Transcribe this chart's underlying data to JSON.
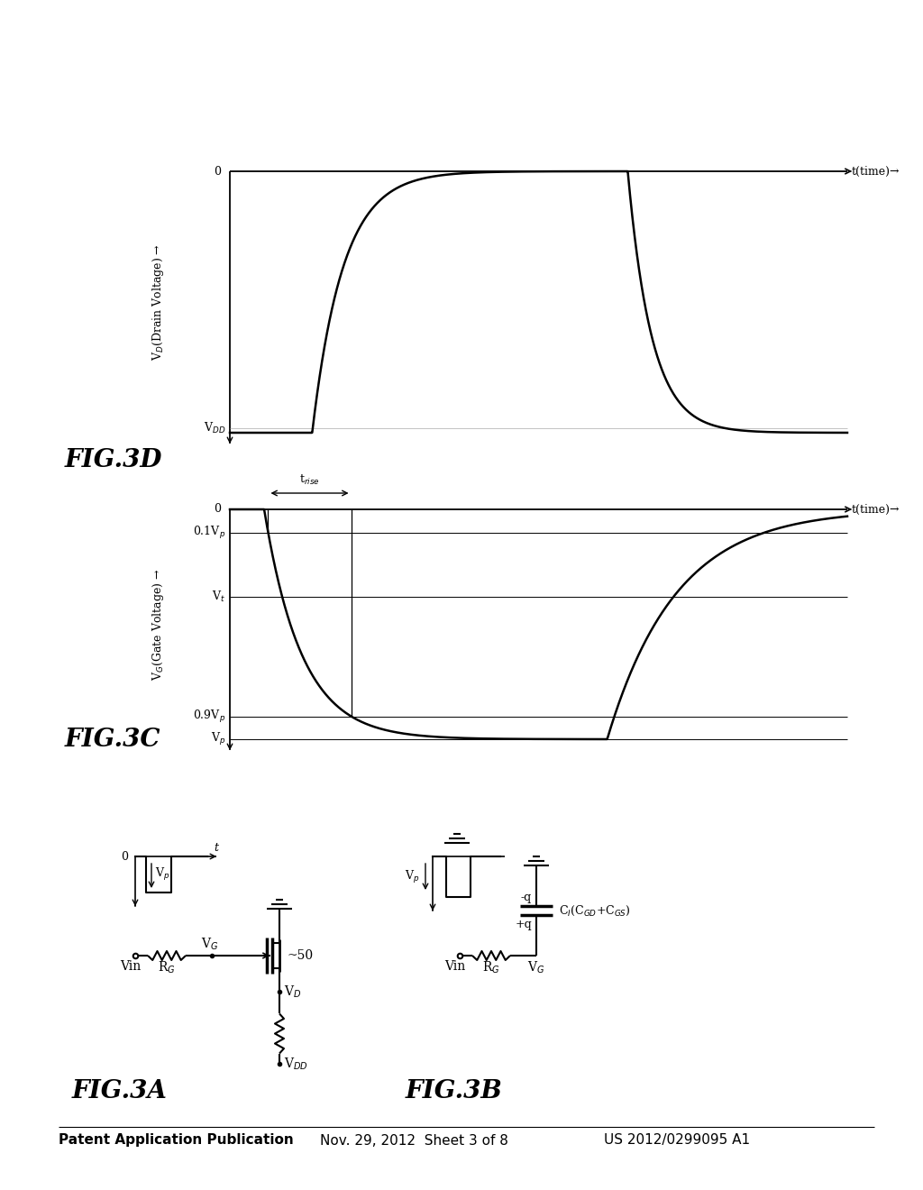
{
  "bg_color": "#ffffff",
  "text_color": "#000000",
  "header_left": "Patent Application Publication",
  "header_center": "Nov. 29, 2012  Sheet 3 of 8",
  "header_right": "US 2012/0299095 A1",
  "fig3a_label": "FIG.3A",
  "fig3b_label": "FIG.3B",
  "fig3c_label": "FIG.3C",
  "fig3d_label": "FIG.3D"
}
